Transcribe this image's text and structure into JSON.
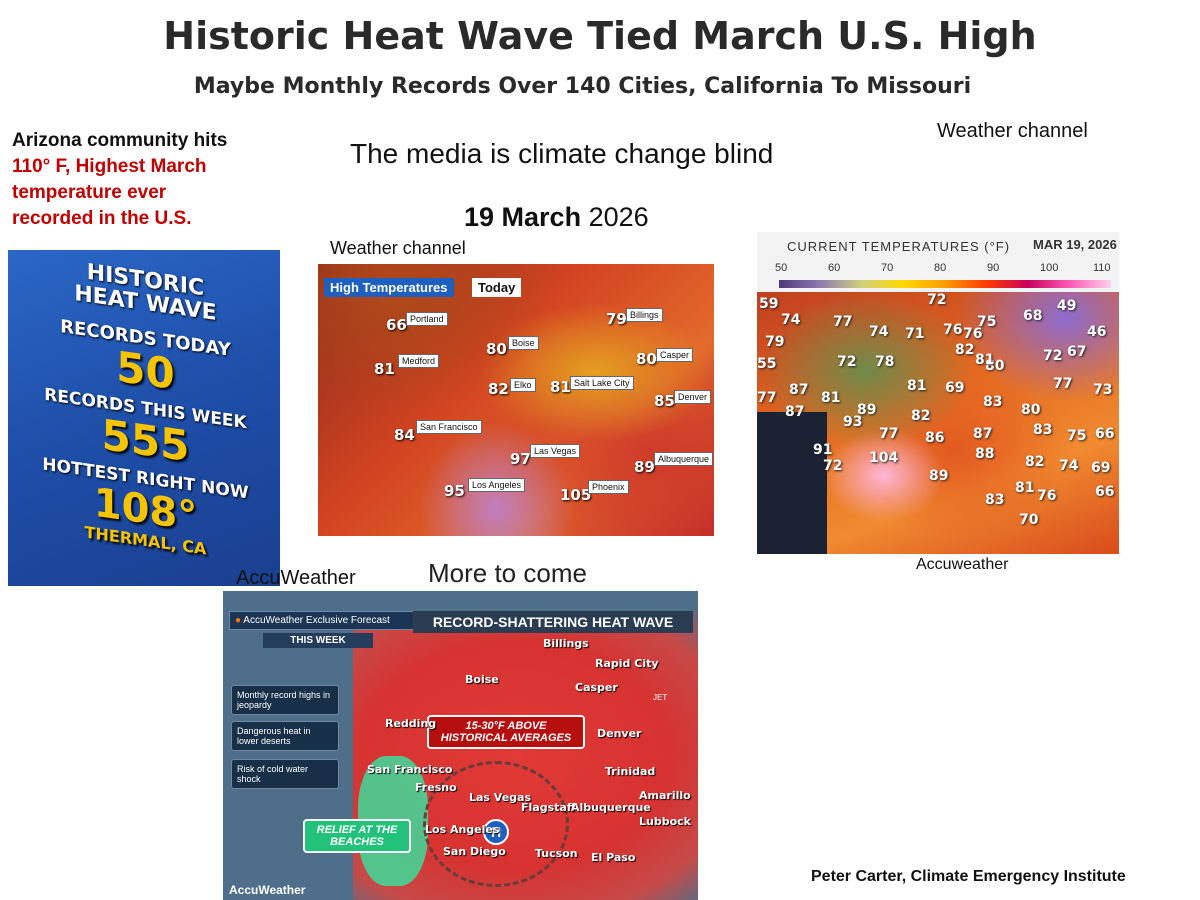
{
  "title": "Historic Heat Wave Tied March U.S. High",
  "subtitle": "Maybe Monthly Records Over 140 Cities,  California To Missouri",
  "az_text_black": "Arizona community hits",
  "az_text_red": "110° F, Highest  March temperature ever recorded in the U.S.",
  "media_text": "The media is climate change blind",
  "wc_top_caption": "Weather channel",
  "date_bold": "19 March",
  "date_year": "2026",
  "wc_caption": "Weather channel",
  "accu_caption": "AccuWeather",
  "more_to_come": "More to come",
  "accu_caption2": "Accuweather",
  "credit": "Peter Carter, Climate Emergency Institute",
  "heatwave_panel": {
    "line1": "HISTORIC",
    "line2": "HEAT WAVE",
    "records_today_label": "RECORDS TODAY",
    "records_today_value": "50",
    "records_week_label": "RECORDS THIS WEEK",
    "records_week_value": "555",
    "hottest_label": "HOTTEST RIGHT NOW",
    "hottest_value": "108°",
    "hottest_place": "THERMAL, CA"
  },
  "wc_map": {
    "header_left": "High Temperatures",
    "header_right": "Today",
    "points": [
      {
        "temp": "66",
        "city": "Portland"
      },
      {
        "temp": "79",
        "city": "Billings"
      },
      {
        "temp": "80",
        "city": "Boise"
      },
      {
        "temp": "80",
        "city": "Casper"
      },
      {
        "temp": "81",
        "city": "Medford"
      },
      {
        "temp": "82",
        "city": "Elko"
      },
      {
        "temp": "81",
        "city": "Salt Lake City"
      },
      {
        "temp": "85",
        "city": "Denver"
      },
      {
        "temp": "84",
        "city": "San Francisco"
      },
      {
        "temp": "97",
        "city": "Las Vegas"
      },
      {
        "temp": "89",
        "city": "Albuquerque"
      },
      {
        "temp": "95",
        "city": "Los Angeles"
      },
      {
        "temp": "105",
        "city": "Phoenix"
      }
    ]
  },
  "accu_temp_map": {
    "header": "CURRENT TEMPERATURES (°F)",
    "date": "MAR 19, 2026",
    "scale": [
      "50",
      "60",
      "70",
      "80",
      "90",
      "100",
      "110"
    ],
    "readings": [
      "59",
      "72",
      "49",
      "74",
      "77",
      "76",
      "75",
      "68",
      "46",
      "79",
      "74",
      "71",
      "76",
      "82",
      "72",
      "67",
      "55",
      "72",
      "78",
      "81",
      "80",
      "81",
      "69",
      "77",
      "73",
      "77",
      "87",
      "81",
      "83",
      "80",
      "87",
      "89",
      "93",
      "82",
      "83",
      "77",
      "86",
      "87",
      "75",
      "66",
      "91",
      "104",
      "88",
      "72",
      "89",
      "82",
      "74",
      "69",
      "81",
      "76",
      "66",
      "83",
      "70"
    ]
  },
  "accu_forecast": {
    "brand": "AccuWeather Exclusive Forecast",
    "this_week": "THIS WEEK",
    "banner": "RECORD-SHATTERING HEAT WAVE",
    "side_items": [
      "Monthly record highs in jeopardy",
      "Dangerous heat in lower deserts",
      "Risk of cold water shock"
    ],
    "callout": "15-30°F ABOVE HISTORICAL AVERAGES",
    "relief": "RELIEF AT THE BEACHES",
    "high_symbol": "H",
    "jet_label": "JET",
    "cities": [
      "Billings",
      "Rapid City",
      "Boise",
      "Casper",
      "Redding",
      "Denver",
      "San Francisco",
      "Trinidad",
      "Fresno",
      "Las Vegas",
      "Flagstaff",
      "Amarillo",
      "Albuquerque",
      "Lubbock",
      "Los Angeles",
      "San Diego",
      "Tucson",
      "El Paso"
    ],
    "logo": "AccuWeather"
  }
}
